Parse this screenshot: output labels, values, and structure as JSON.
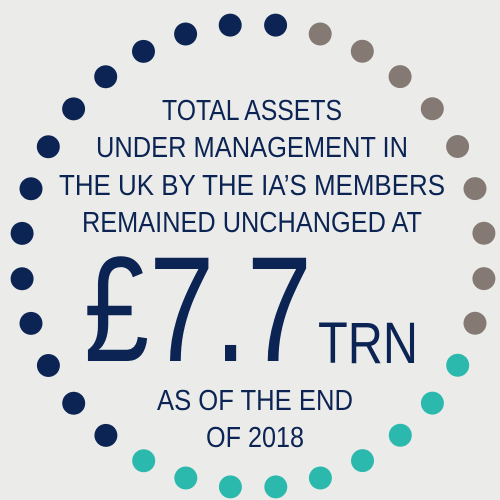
{
  "lines": [
    "TOTAL ASSETS",
    "UNDER MANAGEMENT IN",
    "THE UK BY THE IA’S MEMBERS",
    "REMAINED UNCHANGED AT"
  ],
  "figure": {
    "amount": "£7.7",
    "unit": "TRN"
  },
  "footer": [
    "AS OF THE END",
    "OF 2018"
  ]
}
